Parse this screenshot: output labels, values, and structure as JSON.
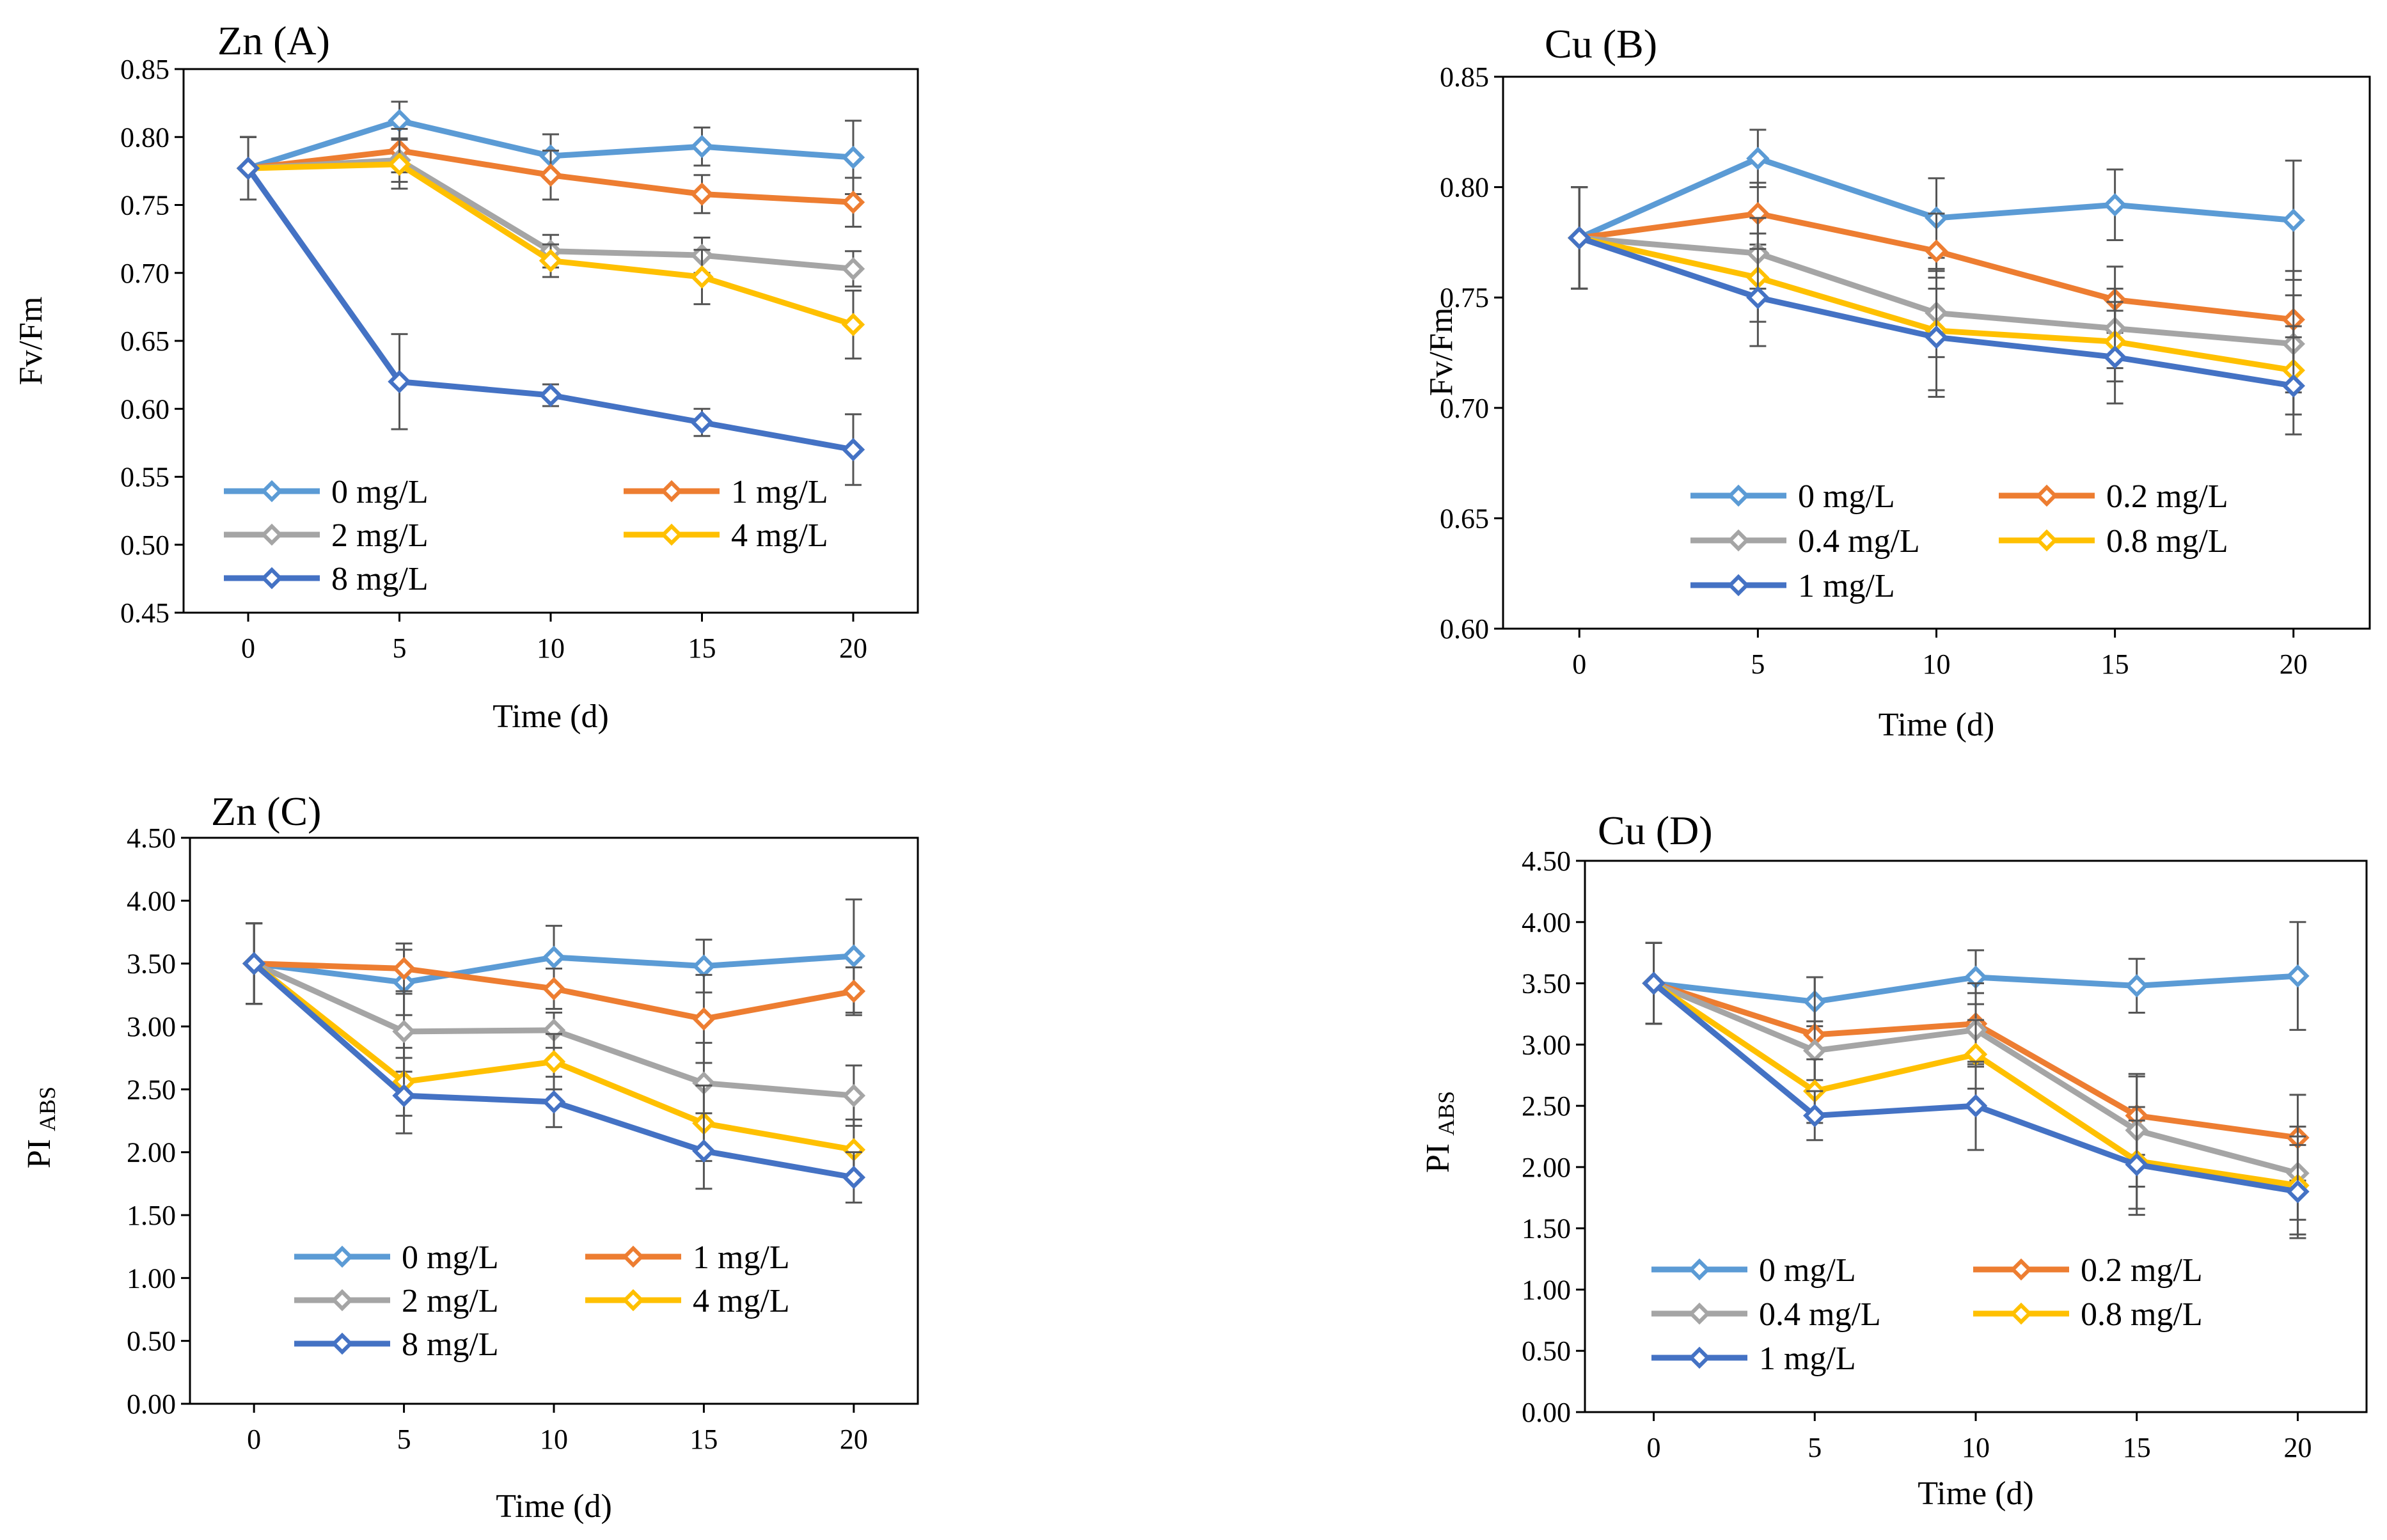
{
  "colors": {
    "c0": "#5B9BD5",
    "c1": "#ED7D31",
    "c2": "#A5A5A5",
    "c3": "#FFC000",
    "c4": "#4472C4"
  },
  "chart_data": [
    {
      "id": "A",
      "type": "line",
      "title": "Zn (A)",
      "xlabel": "Time (d)",
      "ylabel": "Fv/Fm",
      "ylabel_sub": "",
      "x": [
        0,
        5,
        10,
        15,
        20
      ],
      "x_tick_labels": [
        "0",
        "5",
        "10",
        "15",
        "20"
      ],
      "ylim": [
        0.45,
        0.85
      ],
      "y_ticks": [
        0.45,
        0.5,
        0.55,
        0.6,
        0.65,
        0.7,
        0.75,
        0.8,
        0.85
      ],
      "y_tick_labels": [
        "0.45",
        "0.50",
        "0.55",
        "0.60",
        "0.65",
        "0.70",
        "0.75",
        "0.80",
        "0.85"
      ],
      "legend": "bottom-left",
      "series": [
        {
          "name": "0 mg/L",
          "color_key": "c0",
          "values": [
            0.777,
            0.812,
            0.786,
            0.793,
            0.785
          ],
          "errors": [
            0.023,
            0.014,
            0.016,
            0.014,
            0.027
          ]
        },
        {
          "name": "1 mg/L",
          "color_key": "c1",
          "values": [
            0.777,
            0.79,
            0.772,
            0.758,
            0.752
          ],
          "errors": [
            0.023,
            0.016,
            0.018,
            0.014,
            0.018
          ]
        },
        {
          "name": "2 mg/L",
          "color_key": "c2",
          "values": [
            0.777,
            0.783,
            0.716,
            0.713,
            0.703
          ],
          "errors": [
            0.023,
            0.016,
            0.012,
            0.013,
            0.013
          ]
        },
        {
          "name": "4 mg/L",
          "color_key": "c3",
          "values": [
            0.777,
            0.78,
            0.709,
            0.697,
            0.662
          ],
          "errors": [
            0.023,
            0.018,
            0.012,
            0.02,
            0.025
          ]
        },
        {
          "name": "8 mg/L",
          "color_key": "c4",
          "values": [
            0.777,
            0.62,
            0.61,
            0.59,
            0.57
          ],
          "errors": [
            0.023,
            0.035,
            0.008,
            0.01,
            0.026
          ]
        }
      ]
    },
    {
      "id": "B",
      "type": "line",
      "title": "Cu (B)",
      "xlabel": "Time (d)",
      "ylabel": "Fv/Fm",
      "ylabel_sub": "",
      "x": [
        0,
        5,
        10,
        15,
        20
      ],
      "x_tick_labels": [
        "0",
        "5",
        "10",
        "15",
        "20"
      ],
      "ylim": [
        0.6,
        0.85
      ],
      "y_ticks": [
        0.6,
        0.65,
        0.7,
        0.75,
        0.8,
        0.85
      ],
      "y_tick_labels": [
        "0.60",
        "0.65",
        "0.70",
        "0.75",
        "0.80",
        "0.85"
      ],
      "legend": "bottom-left",
      "series": [
        {
          "name": "0 mg/L",
          "color_key": "c0",
          "values": [
            0.777,
            0.813,
            0.786,
            0.792,
            0.785
          ],
          "errors": [
            0.023,
            0.013,
            0.018,
            0.016,
            0.027
          ]
        },
        {
          "name": "0.2 mg/L",
          "color_key": "c1",
          "values": [
            0.777,
            0.788,
            0.771,
            0.749,
            0.74
          ],
          "errors": [
            0.023,
            0.014,
            0.017,
            0.015,
            0.022
          ]
        },
        {
          "name": "0.4 mg/L",
          "color_key": "c2",
          "values": [
            0.777,
            0.77,
            0.743,
            0.736,
            0.729
          ],
          "errors": [
            0.023,
            0.016,
            0.02,
            0.018,
            0.022
          ]
        },
        {
          "name": "0.8 mg/L",
          "color_key": "c3",
          "values": [
            0.777,
            0.759,
            0.735,
            0.73,
            0.717
          ],
          "errors": [
            0.023,
            0.02,
            0.027,
            0.018,
            0.02
          ]
        },
        {
          "name": "1 mg/L",
          "color_key": "c4",
          "values": [
            0.777,
            0.75,
            0.732,
            0.723,
            0.71
          ],
          "errors": [
            0.023,
            0.022,
            0.027,
            0.021,
            0.022
          ]
        }
      ]
    },
    {
      "id": "C",
      "type": "line",
      "title": "Zn (C)",
      "xlabel": "Time (d)",
      "ylabel": "PI",
      "ylabel_sub": "ABS",
      "x": [
        0,
        5,
        10,
        15,
        20
      ],
      "x_tick_labels": [
        "0",
        "5",
        "10",
        "15",
        "20"
      ],
      "ylim": [
        0,
        4.5
      ],
      "y_ticks": [
        0,
        0.5,
        1,
        1.5,
        2,
        2.5,
        3,
        3.5,
        4,
        4.5
      ],
      "y_tick_labels": [
        "0.00",
        "0.50",
        "1.00",
        "1.50",
        "2.00",
        "2.50",
        "3.00",
        "3.50",
        "4.00",
        "4.50"
      ],
      "legend": "bottom-center",
      "series": [
        {
          "name": "0 mg/L",
          "color_key": "c0",
          "values": [
            3.5,
            3.35,
            3.55,
            3.48,
            3.56
          ],
          "errors": [
            0.32,
            0.26,
            0.25,
            0.21,
            0.45
          ]
        },
        {
          "name": "1 mg/L",
          "color_key": "c1",
          "values": [
            3.5,
            3.46,
            3.3,
            3.06,
            3.28
          ],
          "errors": [
            0.32,
            0.2,
            0.16,
            0.35,
            0.19
          ]
        },
        {
          "name": "2 mg/L",
          "color_key": "c2",
          "values": [
            3.5,
            2.96,
            2.97,
            2.55,
            2.45
          ],
          "errors": [
            0.32,
            0.32,
            0.14,
            0.32,
            0.24
          ]
        },
        {
          "name": "4 mg/L",
          "color_key": "c3",
          "values": [
            3.5,
            2.56,
            2.72,
            2.23,
            2.02
          ],
          "errors": [
            0.32,
            0.27,
            0.22,
            0.3,
            0.24
          ]
        },
        {
          "name": "8 mg/L",
          "color_key": "c4",
          "values": [
            3.5,
            2.45,
            2.4,
            2.01,
            1.8
          ],
          "errors": [
            0.32,
            0.3,
            0.2,
            0.3,
            0.2
          ]
        }
      ]
    },
    {
      "id": "D",
      "type": "line",
      "title": "Cu (D)",
      "xlabel": "Time (d)",
      "ylabel": "PI",
      "ylabel_sub": "ABS",
      "x": [
        0,
        5,
        10,
        15,
        20
      ],
      "x_tick_labels": [
        "0",
        "5",
        "10",
        "15",
        "20"
      ],
      "ylim": [
        0,
        4.5
      ],
      "y_ticks": [
        0,
        0.5,
        1,
        1.5,
        2,
        2.5,
        3,
        3.5,
        4,
        4.5
      ],
      "y_tick_labels": [
        "0.00",
        "0.50",
        "1.00",
        "1.50",
        "2.00",
        "2.50",
        "3.00",
        "3.50",
        "4.00",
        "4.50"
      ],
      "legend": "bottom-left",
      "series": [
        {
          "name": "0 mg/L",
          "color_key": "c0",
          "values": [
            3.5,
            3.35,
            3.55,
            3.48,
            3.56
          ],
          "errors": [
            0.33,
            0.2,
            0.22,
            0.22,
            0.44
          ]
        },
        {
          "name": "0.2 mg/L",
          "color_key": "c1",
          "values": [
            3.5,
            3.08,
            3.17,
            2.42,
            2.24
          ],
          "errors": [
            0.33,
            0.47,
            0.33,
            0.32,
            0.35
          ]
        },
        {
          "name": "0.4 mg/L",
          "color_key": "c2",
          "values": [
            3.5,
            2.95,
            3.12,
            2.3,
            1.95
          ],
          "errors": [
            0.33,
            0.24,
            0.3,
            0.46,
            0.38
          ]
        },
        {
          "name": "0.8 mg/L",
          "color_key": "c3",
          "values": [
            3.5,
            2.62,
            2.92,
            2.05,
            1.85
          ],
          "errors": [
            0.33,
            0.26,
            0.28,
            0.44,
            0.4
          ]
        },
        {
          "name": "1 mg/L",
          "color_key": "c4",
          "values": [
            3.5,
            2.42,
            2.5,
            2.02,
            1.8
          ],
          "errors": [
            0.33,
            0.2,
            0.36,
            0.36,
            0.38
          ]
        }
      ]
    }
  ]
}
